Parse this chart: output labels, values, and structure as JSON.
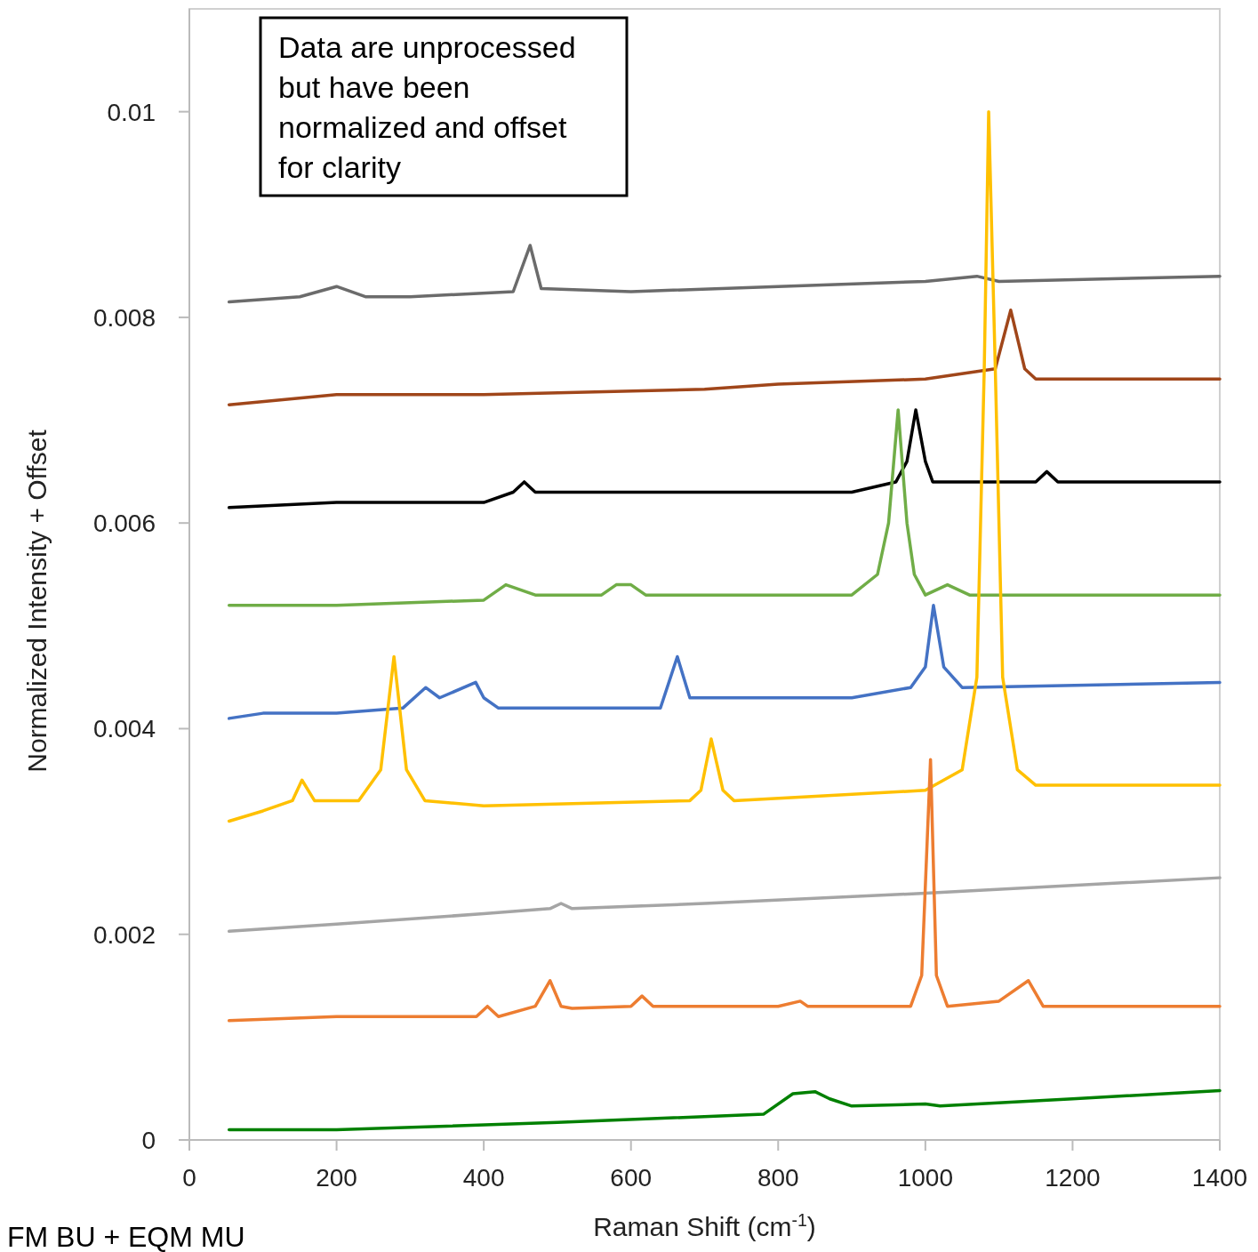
{
  "chart_data": {
    "type": "line",
    "xlabel": "Raman Shift (cm$^{-1}$)",
    "ylabel": "Normalized Intensity + Offset",
    "annotations": [
      "Data are unprocessed but have been normalized and offset for clarity",
      "FM BU + EQM MU"
    ],
    "xlim": [
      0,
      1400
    ],
    "xticks": [
      0,
      200,
      400,
      600,
      800,
      1000,
      1200,
      1400
    ],
    "ylim": [
      0,
      0.011
    ],
    "yticks": [
      0,
      0.002,
      0.004,
      0.006,
      0.008,
      0.01
    ],
    "grid": false,
    "marker": "none",
    "line_style": "solid",
    "series": [
      {
        "color": "#6b6b6b",
        "x": [
          54,
          150,
          200,
          240,
          300,
          440,
          463,
          478,
          600,
          800,
          1000,
          1070,
          1100,
          1400
        ],
        "values": [
          0.00815,
          0.0082,
          0.0083,
          0.0082,
          0.0082,
          0.00825,
          0.0087,
          0.00828,
          0.00825,
          0.0083,
          0.00835,
          0.0084,
          0.00835,
          0.0084
        ]
      },
      {
        "color": "#a0461a",
        "x": [
          54,
          200,
          400,
          700,
          800,
          1000,
          1095,
          1116,
          1135,
          1150,
          1400
        ],
        "values": [
          0.00715,
          0.00725,
          0.00725,
          0.0073,
          0.00735,
          0.0074,
          0.0075,
          0.00807,
          0.0075,
          0.0074,
          0.0074
        ]
      },
      {
        "color": "#000000",
        "x": [
          54,
          200,
          400,
          440,
          455,
          470,
          600,
          900,
          960,
          975,
          987,
          1000,
          1010,
          1150,
          1165,
          1180,
          1400
        ],
        "values": [
          0.00615,
          0.0062,
          0.0062,
          0.0063,
          0.0064,
          0.0063,
          0.0063,
          0.0063,
          0.0064,
          0.0066,
          0.0071,
          0.0066,
          0.0064,
          0.0064,
          0.0065,
          0.0064,
          0.0064
        ]
      },
      {
        "color": "#70ad47",
        "x": [
          54,
          200,
          400,
          430,
          470,
          560,
          580,
          600,
          620,
          900,
          935,
          950,
          963,
          975,
          985,
          1000,
          1030,
          1060,
          1400
        ],
        "values": [
          0.0052,
          0.0052,
          0.00525,
          0.0054,
          0.0053,
          0.0053,
          0.0054,
          0.0054,
          0.0053,
          0.0053,
          0.0055,
          0.006,
          0.0071,
          0.006,
          0.0055,
          0.0053,
          0.0054,
          0.0053,
          0.0053
        ]
      },
      {
        "color": "#4472c4",
        "x": [
          54,
          100,
          200,
          290,
          321,
          340,
          389,
          400,
          420,
          640,
          663,
          680,
          800,
          900,
          980,
          1000,
          1011,
          1025,
          1050,
          1400
        ],
        "values": [
          0.0041,
          0.00415,
          0.00415,
          0.0042,
          0.0044,
          0.0043,
          0.00445,
          0.0043,
          0.0042,
          0.0042,
          0.0047,
          0.0043,
          0.0043,
          0.0043,
          0.0044,
          0.0046,
          0.0052,
          0.0046,
          0.0044,
          0.00445
        ]
      },
      {
        "color": "#ffc000",
        "x": [
          54,
          100,
          140,
          153,
          170,
          230,
          260,
          278,
          295,
          320,
          400,
          680,
          695,
          709,
          725,
          740,
          1000,
          1050,
          1070,
          1080,
          1086,
          1095,
          1105,
          1125,
          1150,
          1400
        ],
        "values": [
          0.0031,
          0.0032,
          0.0033,
          0.0035,
          0.0033,
          0.0033,
          0.0036,
          0.0047,
          0.0036,
          0.0033,
          0.00325,
          0.0033,
          0.0034,
          0.0039,
          0.0034,
          0.0033,
          0.0034,
          0.0036,
          0.0045,
          0.0075,
          0.01,
          0.0075,
          0.0045,
          0.0036,
          0.00345,
          0.00345
        ]
      },
      {
        "color": "#a5a5a5",
        "x": [
          54,
          200,
          400,
          490,
          505,
          520,
          700,
          1000,
          1400
        ],
        "values": [
          0.00203,
          0.0021,
          0.0022,
          0.00225,
          0.0023,
          0.00225,
          0.0023,
          0.0024,
          0.00255
        ]
      },
      {
        "color": "#ed7d31",
        "x": [
          54,
          200,
          390,
          405,
          420,
          470,
          490,
          505,
          520,
          600,
          615,
          630,
          800,
          830,
          840,
          980,
          995,
          1007,
          1015,
          1030,
          1100,
          1140,
          1160,
          1400
        ],
        "values": [
          0.00116,
          0.0012,
          0.0012,
          0.0013,
          0.0012,
          0.0013,
          0.00155,
          0.0013,
          0.00128,
          0.0013,
          0.0014,
          0.0013,
          0.0013,
          0.00135,
          0.0013,
          0.0013,
          0.0016,
          0.0037,
          0.0016,
          0.0013,
          0.00135,
          0.00155,
          0.0013,
          0.0013
        ]
      },
      {
        "color": "#008000",
        "x": [
          54,
          200,
          500,
          780,
          820,
          850,
          870,
          900,
          1000,
          1020,
          1200,
          1400
        ],
        "values": [
          0.0001,
          0.0001,
          0.00017,
          0.00025,
          0.00045,
          0.00047,
          0.0004,
          0.00033,
          0.00035,
          0.00033,
          0.0004,
          0.00048
        ]
      }
    ]
  }
}
